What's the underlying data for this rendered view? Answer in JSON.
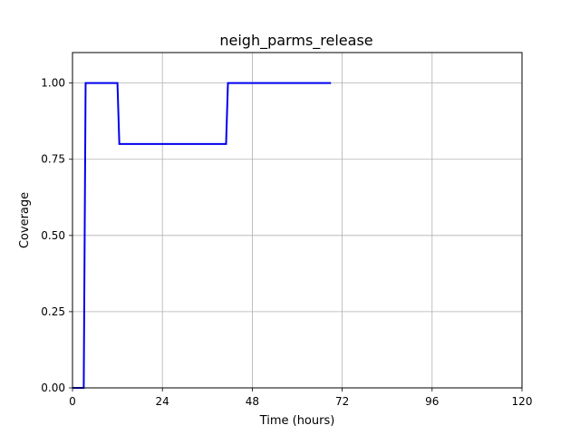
{
  "chart_data": {
    "type": "line",
    "title": "neigh_parms_release",
    "xlabel": "Time (hours)",
    "ylabel": "Coverage",
    "xlim": [
      0,
      120
    ],
    "ylim": [
      0,
      1.1
    ],
    "x_ticks": [
      0,
      24,
      48,
      72,
      96,
      120
    ],
    "x_tick_labels": [
      "0",
      "24",
      "48",
      "72",
      "96",
      "120"
    ],
    "y_ticks": [
      0,
      0.25,
      0.5,
      0.75,
      1.0
    ],
    "y_tick_labels": [
      "0.00",
      "0.25",
      "0.50",
      "0.75",
      "1.00"
    ],
    "grid": true,
    "series": [
      {
        "color": "#0000ee",
        "x": [
          0,
          3,
          3.5,
          12,
          12.5,
          41,
          41.5,
          69
        ],
        "y": [
          0,
          0,
          1.0,
          1.0,
          0.8,
          0.8,
          1.0,
          1.0
        ]
      }
    ]
  }
}
